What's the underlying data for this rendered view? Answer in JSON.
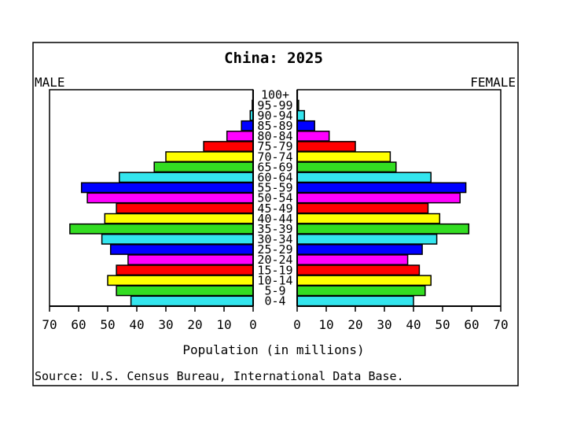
{
  "chart_data": {
    "type": "bar",
    "title": "China: 2025",
    "left_label": "MALE",
    "right_label": "FEMALE",
    "xlabel": "Population (in millions)",
    "source": "Source: U.S. Census Bureau, International Data Base.",
    "xlim": [
      0,
      70
    ],
    "ticks": [
      0,
      10,
      20,
      30,
      40,
      50,
      60,
      70
    ],
    "categories": [
      "0-4",
      "5-9",
      "10-14",
      "15-19",
      "20-24",
      "25-29",
      "30-34",
      "35-39",
      "40-44",
      "45-49",
      "50-54",
      "55-59",
      "60-64",
      "65-69",
      "70-74",
      "75-79",
      "80-84",
      "85-89",
      "90-94",
      "95-99",
      "100+"
    ],
    "colors": [
      "#33e5ee",
      "#33dd22",
      "#ffff00",
      "#ff0000",
      "#ff00ff",
      "#0000ff",
      "#33e5ee",
      "#33dd22",
      "#ffff00",
      "#ff0000",
      "#ff00ff",
      "#0000ff",
      "#33e5ee",
      "#33dd22",
      "#ffff00",
      "#ff0000",
      "#ff00ff",
      "#0000ff",
      "#33e5ee",
      "#33dd22",
      "#ffff00"
    ],
    "series": [
      {
        "name": "MALE",
        "values": [
          42,
          47,
          50,
          47,
          43,
          49,
          52,
          63,
          51,
          47,
          57,
          59,
          46,
          34,
          30,
          17,
          9,
          4,
          1,
          0.3,
          0.1
        ]
      },
      {
        "name": "FEMALE",
        "values": [
          40,
          44,
          46,
          42,
          38,
          43,
          48,
          59,
          49,
          45,
          56,
          58,
          46,
          34,
          32,
          20,
          11,
          6,
          2.5,
          0.5,
          0.1
        ]
      }
    ]
  }
}
